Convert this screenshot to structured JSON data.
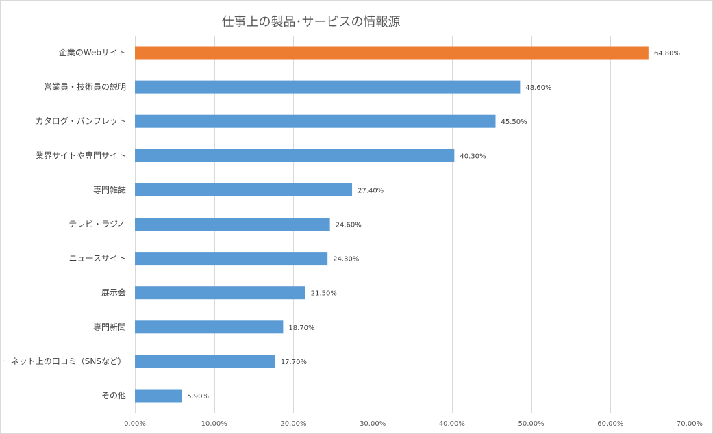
{
  "chart_data": {
    "type": "bar",
    "orientation": "horizontal",
    "title": "仕事上の製品･サービスの情報源",
    "categories": [
      "企業のWebサイト",
      "営業員・技術員の説明",
      "カタログ・パンフレット",
      "業界サイトや専門サイト",
      "専門雑誌",
      "テレビ・ラジオ",
      "ニュースサイト",
      "展示会",
      "専門新聞",
      "インターネット上の口コミ（SNSなど）",
      "その他"
    ],
    "values": [
      64.8,
      48.6,
      45.5,
      40.3,
      27.4,
      24.6,
      24.3,
      21.5,
      18.7,
      17.7,
      5.9
    ],
    "data_labels": [
      "64.80%",
      "48.60%",
      "45.50%",
      "40.30%",
      "27.40%",
      "24.60%",
      "24.30%",
      "21.50%",
      "18.70%",
      "17.70%",
      "5.90%"
    ],
    "xlim": [
      0,
      70
    ],
    "x_ticks": [
      0,
      10,
      20,
      30,
      40,
      50,
      60,
      70
    ],
    "x_tick_labels": [
      "0.00%",
      "10.00%",
      "20.00%",
      "30.00%",
      "40.00%",
      "50.00%",
      "60.00%",
      "70.00%"
    ],
    "grid": true,
    "highlight_index": 0,
    "colors": {
      "bar": "#5b9bd5",
      "highlight": "#ed7d31",
      "grid": "#d9d9d9"
    }
  }
}
